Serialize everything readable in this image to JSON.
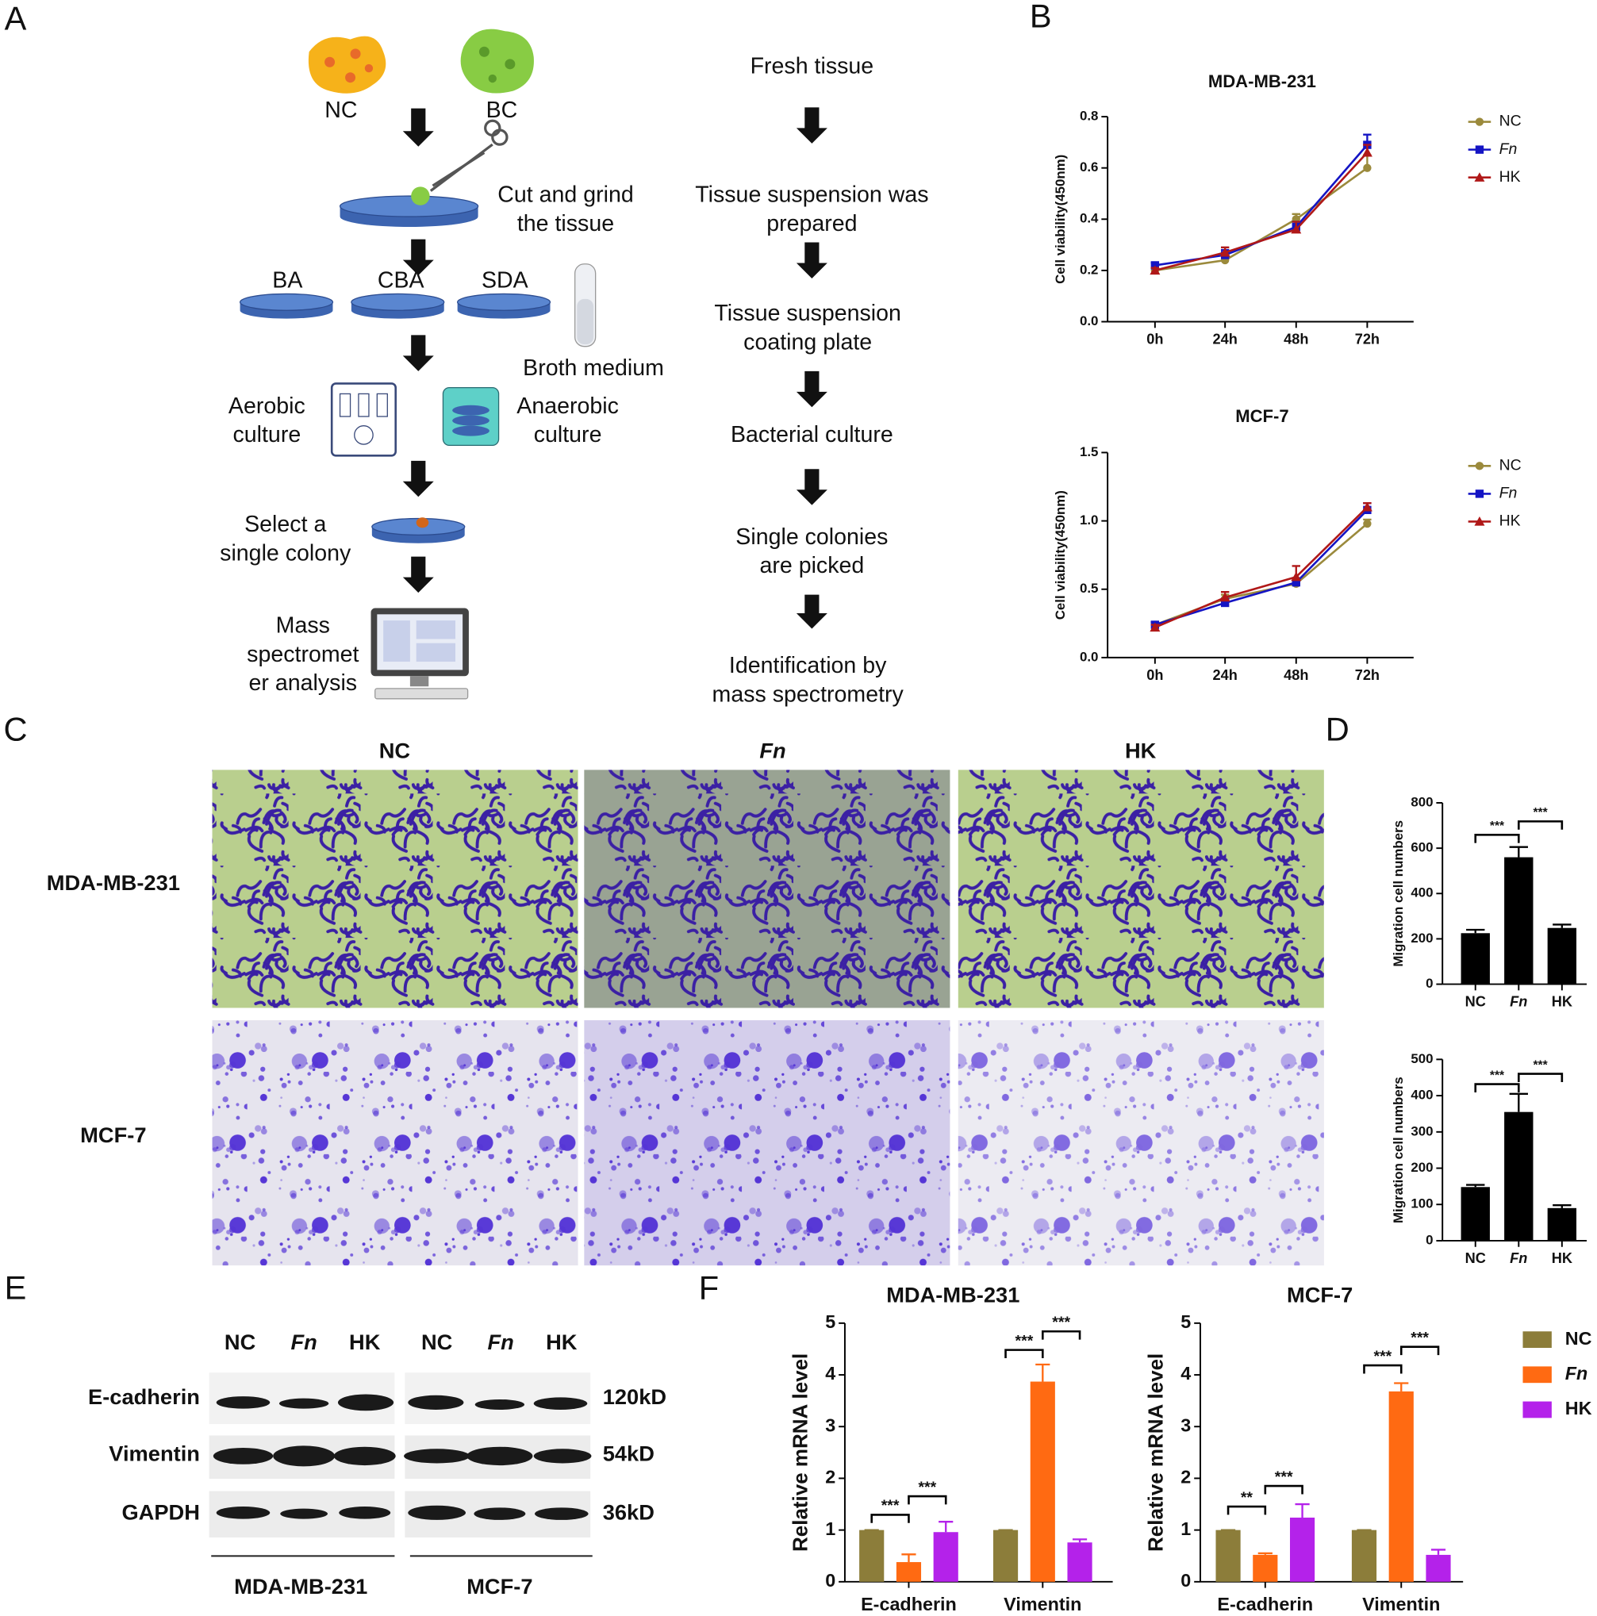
{
  "panel_labels": [
    "A",
    "B",
    "C",
    "D",
    "E",
    "F"
  ],
  "diagram": {
    "sample_labels": [
      "NC",
      "BC"
    ],
    "left_steps": [
      [
        "Cut and grind",
        "the tissue"
      ],
      [
        "BA"
      ],
      [
        "CBA"
      ],
      [
        "SDA"
      ],
      [
        "Broth medium"
      ],
      [
        "Aerobic",
        "culture"
      ],
      [
        "Anaerobic",
        "culture"
      ],
      [
        "Select a",
        "single colony"
      ],
      [
        "Mass",
        "spectromet",
        "er analysis"
      ]
    ],
    "right_steps": [
      [
        "Fresh tissue"
      ],
      [
        "Tissue suspension was",
        "prepared"
      ],
      [
        "Tissue suspension",
        "coating plate"
      ],
      [
        "Bacterial culture"
      ],
      [
        "Single colonies",
        "are picked"
      ],
      [
        "Identification by",
        "mass spectrometry"
      ]
    ]
  },
  "micrographs": {
    "columns": [
      "NC",
      "Fn",
      "HK"
    ],
    "rows": [
      "MDA-MB-231",
      "MCF-7"
    ]
  },
  "blot": {
    "lanes": [
      "NC",
      "Fn",
      "HK",
      "NC",
      "Fn",
      "HK"
    ],
    "proteins": [
      "E-cadherin",
      "Vimentin",
      "GAPDH"
    ],
    "sizes": [
      "120kD",
      "54kD",
      "36kD"
    ],
    "groups": [
      "MDA-MB-231",
      "MCF-7"
    ]
  },
  "chart_data": [
    {
      "type": "line",
      "title": "MDA-MB-231",
      "y_label": "Cell viability(450nm)",
      "categories": [
        "0h",
        "24h",
        "48h",
        "72h"
      ],
      "series": [
        {
          "name": "NC",
          "color": "#9b8a3c",
          "values": [
            0.2,
            0.24,
            0.4,
            0.6
          ],
          "errors": [
            0.01,
            0.02,
            0.02,
            0.05
          ]
        },
        {
          "name": "Fn",
          "color": "#1414c4",
          "values": [
            0.22,
            0.26,
            0.37,
            0.69
          ],
          "errors": [
            0.01,
            0.02,
            0.02,
            0.04
          ]
        },
        {
          "name": "HK",
          "color": "#b01818",
          "values": [
            0.2,
            0.27,
            0.36,
            0.66
          ],
          "errors": [
            0.01,
            0.02,
            0.03,
            0.03
          ]
        }
      ],
      "ylim": [
        0,
        0.8
      ],
      "yticks": [
        {
          "value": 0,
          "label": "0.0"
        },
        0.2,
        0.4,
        0.6,
        0.8
      ],
      "legend": "right"
    },
    {
      "type": "line",
      "title": "MCF-7",
      "y_label": "Cell viability(450nm)",
      "categories": [
        "0h",
        "24h",
        "48h",
        "72h"
      ],
      "series": [
        {
          "name": "NC",
          "color": "#9b8a3c",
          "values": [
            0.24,
            0.43,
            0.54,
            0.98
          ],
          "errors": [
            0.02,
            0.03,
            0.04,
            0.03
          ]
        },
        {
          "name": "Fn",
          "color": "#1414c4",
          "values": [
            0.24,
            0.4,
            0.55,
            1.08
          ],
          "errors": [
            0.02,
            0.03,
            0.03,
            0.05
          ]
        },
        {
          "name": "HK",
          "color": "#b01818",
          "values": [
            0.22,
            0.44,
            0.59,
            1.1
          ],
          "errors": [
            0.02,
            0.04,
            0.08,
            0.03
          ]
        }
      ],
      "ylim": [
        0,
        1.5
      ],
      "yticks": [
        {
          "value": 0,
          "label": "0.0"
        },
        0.5,
        {
          "value": 1,
          "label": "1.0"
        },
        1.5
      ],
      "legend": "right"
    },
    {
      "type": "bar",
      "y_label": "Migration cell numbers",
      "categories": [
        "NC",
        "Fn",
        "HK"
      ],
      "values": [
        225,
        560,
        248
      ],
      "errors": [
        15,
        45,
        15
      ],
      "color": "#000000",
      "ylim": [
        0,
        800
      ],
      "yticks": [
        0,
        200,
        400,
        600,
        800
      ],
      "annotations": [
        "***",
        "***"
      ]
    },
    {
      "type": "bar",
      "y_label": "Migration cell numbers",
      "categories": [
        "NC",
        "Fn",
        "HK"
      ],
      "values": [
        148,
        355,
        90
      ],
      "errors": [
        6,
        50,
        8
      ],
      "color": "#000000",
      "ylim": [
        0,
        500
      ],
      "yticks": [
        0,
        100,
        200,
        300,
        400,
        500
      ],
      "annotations": [
        "***",
        "***"
      ]
    },
    {
      "type": "bar",
      "title": "MDA-MB-231",
      "y_label": "Relative mRNA level",
      "categories": [
        "E-cadherin",
        "Vimentin"
      ],
      "series": [
        {
          "name": "NC",
          "color": "#8c7d3a",
          "values": [
            1,
            1
          ],
          "errors": [
            0,
            0
          ]
        },
        {
          "name": "Fn",
          "color": "#ff6a12",
          "values": [
            0.38,
            3.87
          ],
          "errors": [
            0.15,
            0.33
          ]
        },
        {
          "name": "HK",
          "color": "#b422ea",
          "values": [
            0.96,
            0.76
          ],
          "errors": [
            0.2,
            0.06
          ]
        }
      ],
      "ylim": [
        0,
        5
      ],
      "yticks": [
        0,
        1,
        2,
        3,
        4,
        5
      ],
      "annotations": [
        "***",
        "***",
        "***",
        "***"
      ]
    },
    {
      "type": "bar",
      "title": "MCF-7",
      "y_label": "Relative mRNA level",
      "categories": [
        "E-cadherin",
        "Vimentin"
      ],
      "series": [
        {
          "name": "NC",
          "color": "#8c7d3a",
          "values": [
            1,
            1
          ],
          "errors": [
            0,
            0
          ]
        },
        {
          "name": "Fn",
          "color": "#ff6a12",
          "values": [
            0.52,
            3.68
          ],
          "errors": [
            0.03,
            0.16
          ]
        },
        {
          "name": "HK",
          "color": "#b422ea",
          "values": [
            1.24,
            0.52
          ],
          "errors": [
            0.26,
            0.1
          ]
        }
      ],
      "ylim": [
        0,
        5
      ],
      "yticks": [
        0,
        1,
        2,
        3,
        4,
        5
      ],
      "annotations": [
        "**",
        "***",
        "***",
        "***"
      ],
      "legend": "right"
    }
  ]
}
